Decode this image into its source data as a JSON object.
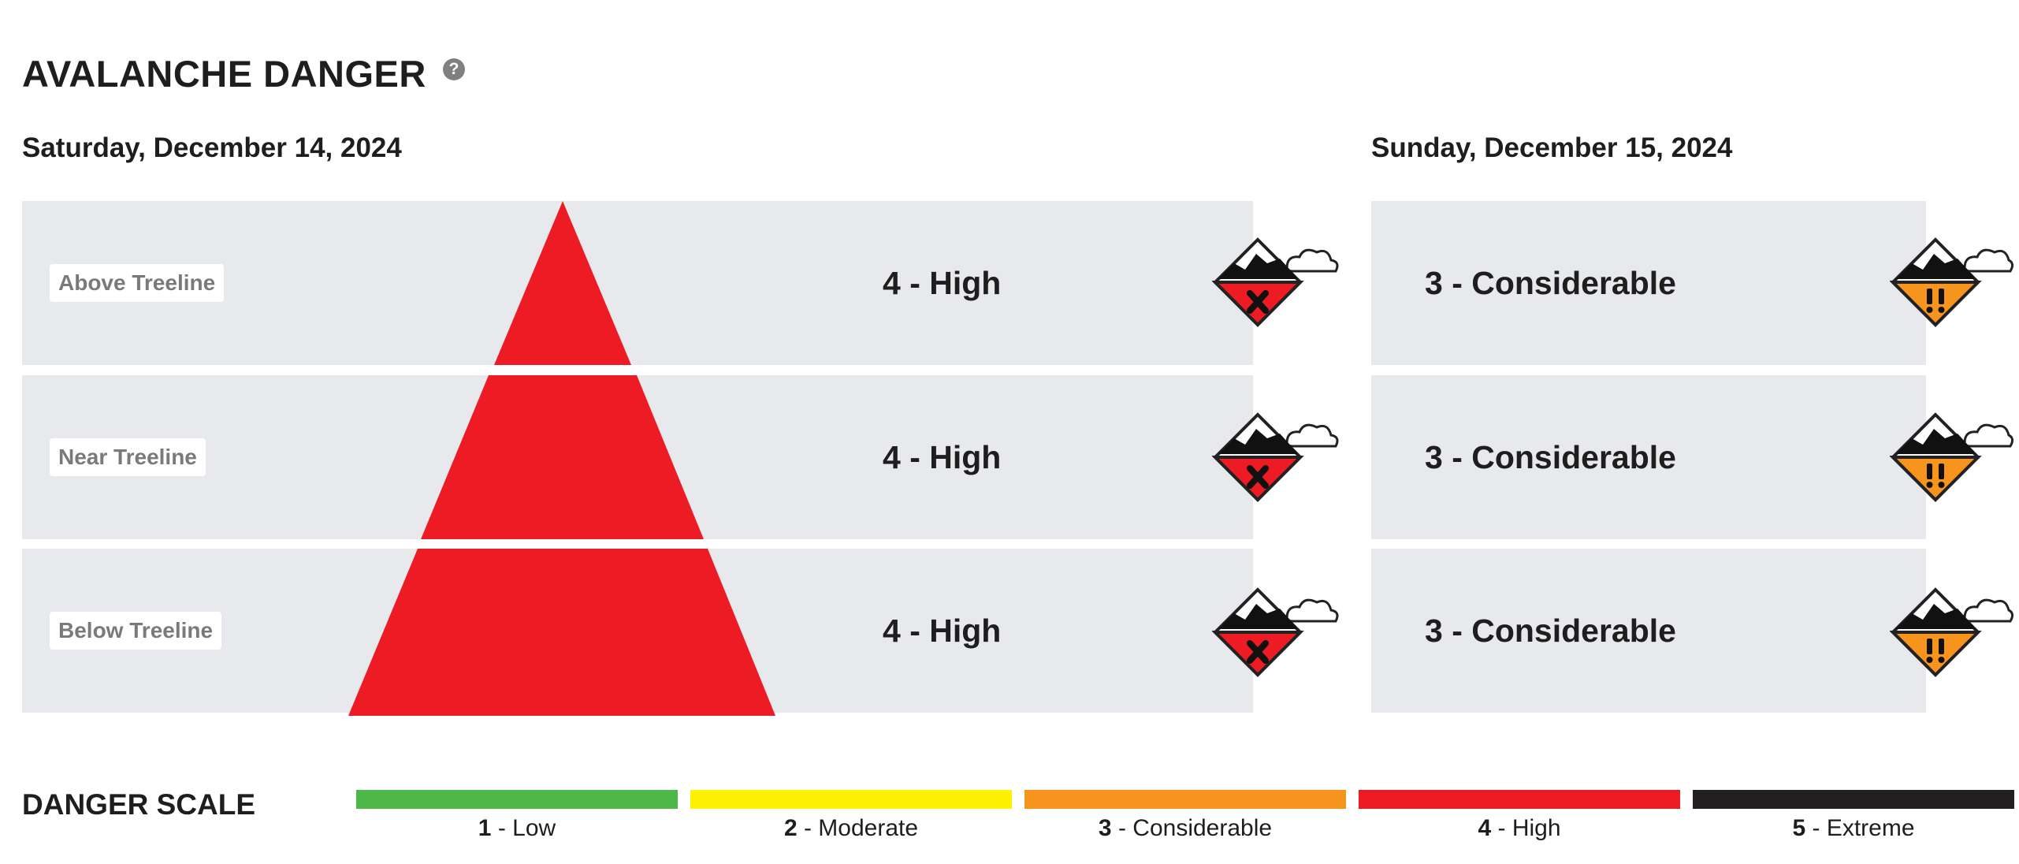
{
  "header": {
    "title": "AVALANCHE DANGER",
    "help_icon": "question-circle-icon",
    "help_glyph": "?"
  },
  "days": [
    {
      "date": "Saturday, December 14, 2024",
      "rows": [
        {
          "elevation": "Above Treeline",
          "rating": "4 - High",
          "level": 4,
          "color": "#ed1c24",
          "icon": "danger-level-4-icon"
        },
        {
          "elevation": "Near Treeline",
          "rating": "4 - High",
          "level": 4,
          "color": "#ed1c24",
          "icon": "danger-level-4-icon"
        },
        {
          "elevation": "Below Treeline",
          "rating": "4 - High",
          "level": 4,
          "color": "#ed1c24",
          "icon": "danger-level-4-icon"
        }
      ]
    },
    {
      "date": "Sunday, December 15, 2024",
      "rows": [
        {
          "rating": "3 - Considerable",
          "level": 3,
          "color": "#f7941d",
          "icon": "danger-level-3-icon"
        },
        {
          "rating": "3 - Considerable",
          "level": 3,
          "color": "#f7941d",
          "icon": "danger-level-3-icon"
        },
        {
          "rating": "3 - Considerable",
          "level": 3,
          "color": "#f7941d",
          "icon": "danger-level-3-icon"
        }
      ]
    }
  ],
  "danger_scale": {
    "title": "DANGER SCALE",
    "levels": [
      {
        "number": "1",
        "label": "Low",
        "color": "#4db748"
      },
      {
        "number": "2",
        "label": "Moderate",
        "color": "#fff200"
      },
      {
        "number": "3",
        "label": "Considerable",
        "color": "#f7941d"
      },
      {
        "number": "4",
        "label": "High",
        "color": "#ed1c24"
      },
      {
        "number": "5",
        "label": "Extreme",
        "color": "#231f20"
      }
    ]
  },
  "colors": {
    "row_background": "#e7e9ec",
    "pyramid_fill": "#ed1c24"
  }
}
